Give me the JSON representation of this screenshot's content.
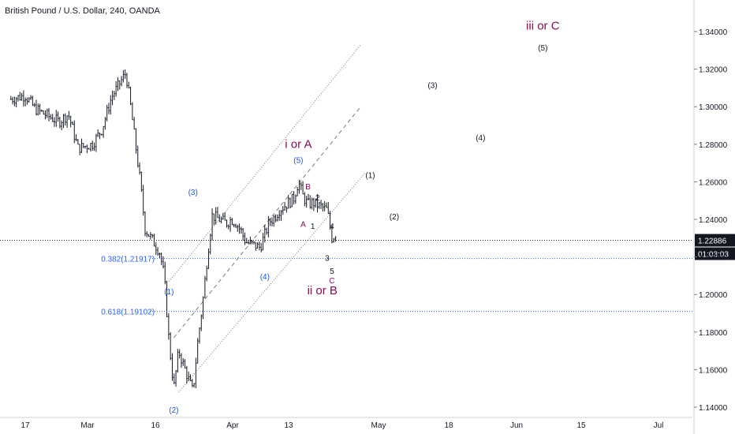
{
  "header": {
    "title": "British Pound / U.S. Dollar, 240, OANDA"
  },
  "colors": {
    "candle": "#131722",
    "wave_blue": "#1e53e5",
    "wave_black": "#131722",
    "wave_red": "#880e4f",
    "fib": "#2962ff",
    "channel": "#787b86"
  },
  "chart_data": {
    "type": "candlestick",
    "symbol": "British Pound / U.S. Dollar",
    "interval": "240",
    "source": "OANDA",
    "ylim": [
      1.137,
      1.357
    ],
    "y_ticks": [
      "1.34000",
      "1.32000",
      "1.30000",
      "1.28000",
      "1.26000",
      "1.24000",
      "1.22000",
      "1.20000",
      "1.18000",
      "1.16000",
      "1.14000"
    ],
    "x_ticks": [
      "17",
      "Mar",
      "16",
      "Apr",
      "13",
      "May",
      "18",
      "Jun",
      "15",
      "Jul"
    ],
    "price_path": [
      [
        "2020-02-14",
        1.304
      ],
      [
        "2020-02-17",
        1.306
      ],
      [
        "2020-02-19",
        1.299
      ],
      [
        "2020-02-21",
        1.296
      ],
      [
        "2020-02-24",
        1.292
      ],
      [
        "2020-02-26",
        1.296
      ],
      [
        "2020-02-28",
        1.278
      ],
      [
        "2020-03-02",
        1.28
      ],
      [
        "2020-03-04",
        1.288
      ],
      [
        "2020-03-06",
        1.305
      ],
      [
        "2020-03-09",
        1.318
      ],
      [
        "2020-03-10",
        1.3
      ],
      [
        "2020-03-12",
        1.26
      ],
      [
        "2020-03-13",
        1.235
      ],
      [
        "2020-03-16",
        1.223
      ],
      [
        "2020-03-17",
        1.21
      ],
      [
        "2020-03-18",
        1.175
      ],
      [
        "2020-03-19",
        1.15
      ],
      [
        "2020-03-20",
        1.17
      ],
      [
        "2020-03-23",
        1.148
      ],
      [
        "2020-03-24",
        1.175
      ],
      [
        "2020-03-25",
        1.195
      ],
      [
        "2020-03-26",
        1.22
      ],
      [
        "2020-03-27",
        1.242
      ],
      [
        "2020-03-30",
        1.238
      ],
      [
        "2020-03-31",
        1.24
      ],
      [
        "2020-04-01",
        1.238
      ],
      [
        "2020-04-02",
        1.234
      ],
      [
        "2020-04-03",
        1.228
      ],
      [
        "2020-04-06",
        1.225
      ],
      [
        "2020-04-07",
        1.232
      ],
      [
        "2020-04-08",
        1.239
      ],
      [
        "2020-04-09",
        1.241
      ],
      [
        "2020-04-10",
        1.245
      ],
      [
        "2020-04-13",
        1.251
      ],
      [
        "2020-04-14",
        1.26
      ],
      [
        "2020-04-15",
        1.252
      ],
      [
        "2020-04-16",
        1.248
      ],
      [
        "2020-04-17",
        1.249
      ],
      [
        "2020-04-20",
        1.245
      ],
      [
        "2020-04-21",
        1.23
      ],
      [
        "2020-04-22",
        1.233
      ]
    ],
    "last_price": "1.22886",
    "countdown": "01:03:03",
    "fib_levels": [
      {
        "label": "0.382(1.21917)",
        "value": 1.21917
      },
      {
        "label": "0.618(1.19102)",
        "value": 1.19102
      }
    ],
    "annotations": {
      "primary_up": "i or A",
      "primary_down": "ii or B",
      "primary_future": "iii or C",
      "sub_up": [
        "(1)",
        "(2)",
        "(3)",
        "(4)",
        "(5)"
      ],
      "sub_down": [
        "A",
        "B",
        "C"
      ],
      "minor": [
        "1",
        "2",
        "3",
        "4",
        "5"
      ],
      "projection": [
        "(1)",
        "(2)",
        "(3)",
        "(4)",
        "(5)"
      ]
    }
  }
}
